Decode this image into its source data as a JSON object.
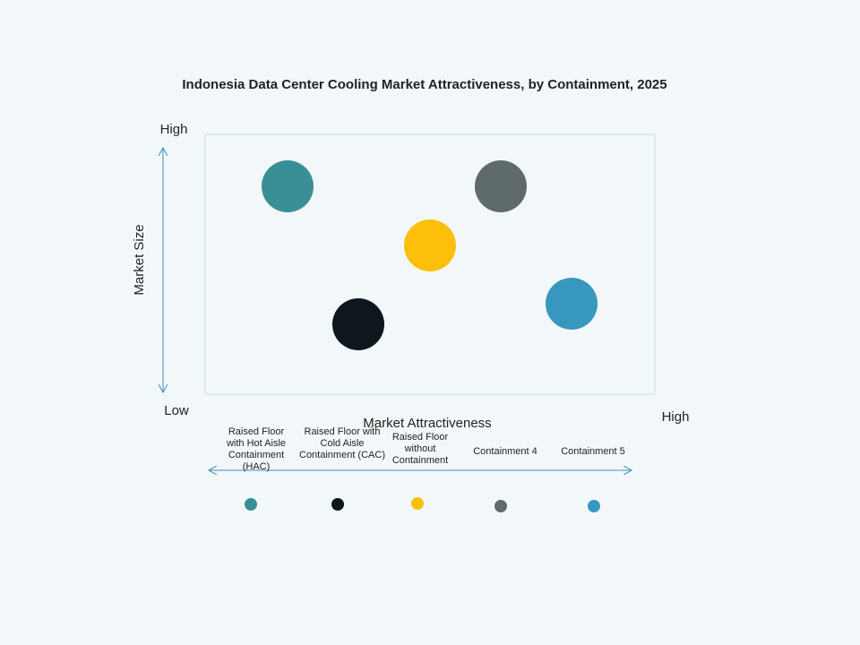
{
  "title": "Indonesia Data Center Cooling Market Attractiveness,  by Containment, 2025",
  "y_axis": {
    "label": "Market Size",
    "high": "High",
    "low": "Low"
  },
  "x_axis": {
    "label": "Market Attractiveness",
    "high": "High"
  },
  "items": [
    {
      "label": "Raised Floor with Hot Aisle Containment (HAC)",
      "color": "#3a8f96"
    },
    {
      "label": "Raised Floor with Cold Aisle Containment (CAC)",
      "color": "#0e161e"
    },
    {
      "label": "Raised Floor without Containment",
      "color": "#fdbf0b"
    },
    {
      "label": "Containment 4",
      "color": "#5f6a6a"
    },
    {
      "label": "Containment 5",
      "color": "#3897bf"
    }
  ]
}
